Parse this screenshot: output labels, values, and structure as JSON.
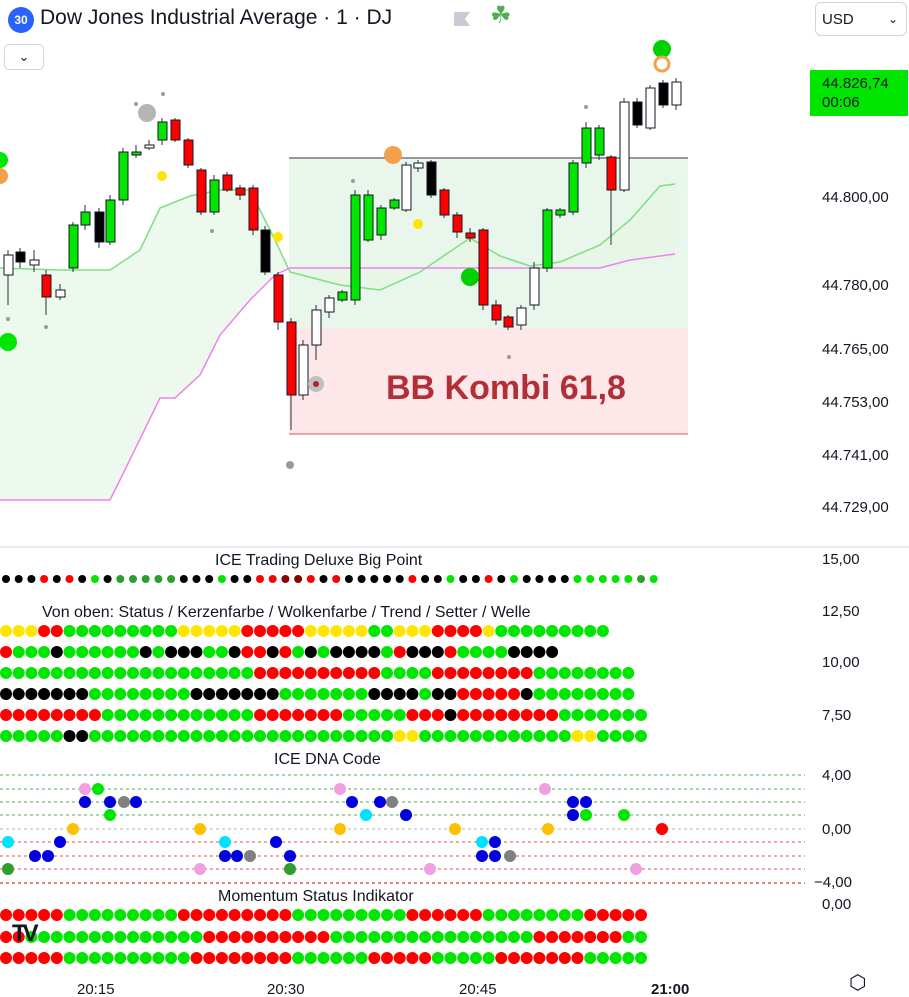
{
  "header": {
    "badge": "30",
    "title": "Dow Jones Industrial Average · 1 · DJ",
    "currency": "USD"
  },
  "price_tag": {
    "price": "44.826,74",
    "countdown": "00:06"
  },
  "main_chart": {
    "annotation": "BB Kombi 61,8",
    "y_labels": [
      "44.800,00",
      "44.780,00",
      "44.765,00",
      "44.753,00",
      "44.741,00",
      "44.729,00"
    ]
  },
  "panes": {
    "bigpoint_title": "ICE Trading Deluxe Big Point",
    "status_title": "Von oben: Status / Kerzenfarbe / Wolkenfarbe / Trend / Setter / Welle",
    "dna_title": "ICE DNA Code",
    "momentum_title": "Momentum Status Indikator",
    "osc_labels": [
      "15,00",
      "12,50",
      "10,00",
      "7,50",
      "4,00",
      "0,00",
      "−4,00",
      "0,00"
    ]
  },
  "time_axis": [
    "20:15",
    "20:30",
    "20:45",
    "21:00"
  ],
  "colors": {
    "up": "#00e600",
    "down": "#ff0000",
    "accent": "#2962ff"
  },
  "icons": {
    "flag": "flag-icon",
    "clover": "clover-icon",
    "settings": "settings-icon",
    "chevron": "chevron-down-icon"
  },
  "chart_data": {
    "type": "candlestick",
    "y_ticks": [
      44800,
      44780,
      44765,
      44753,
      44741,
      44729
    ],
    "x_ticks": [
      "20:15",
      "20:30",
      "20:45",
      "21:00"
    ],
    "last_price": 44826.74
  }
}
